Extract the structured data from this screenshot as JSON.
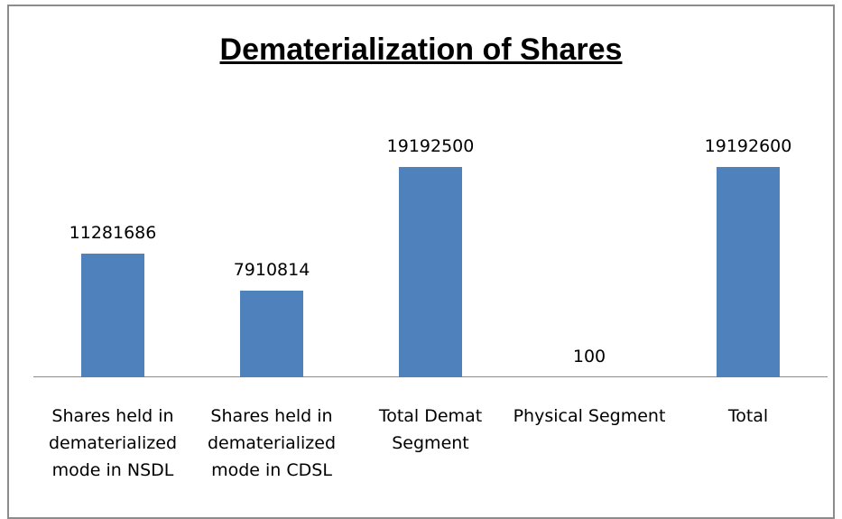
{
  "chart_data": {
    "type": "bar",
    "title": "Dematerialization of Shares",
    "categories": [
      "Shares held in dematerialized mode in NSDL",
      "Shares held in dematerialized mode in CDSL",
      "Total Demat Segment",
      "Physical Segment",
      "Total"
    ],
    "values": [
      11281686,
      7910814,
      19192500,
      100,
      19192600
    ],
    "color": "#4f81bd",
    "ylim": [
      0,
      25000000
    ]
  }
}
